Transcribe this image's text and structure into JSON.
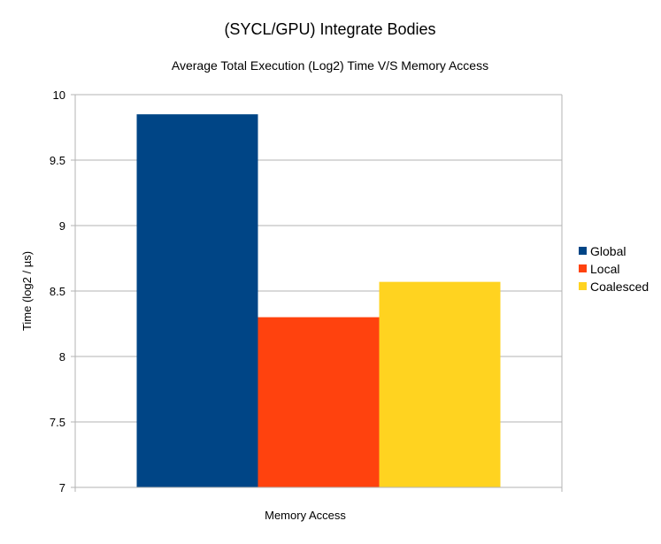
{
  "chart_data": {
    "type": "bar",
    "title": "(SYCL/GPU) Integrate Bodies",
    "subtitle": "Average Total Execution (Log2) Time V/S Memory Access",
    "xlabel": "Memory Access",
    "ylabel": "Time (log2 / µs)",
    "categories": [
      "Memory Access"
    ],
    "series": [
      {
        "name": "Global",
        "values": [
          9.85
        ],
        "color": "#004586"
      },
      {
        "name": "Local",
        "values": [
          8.3
        ],
        "color": "#ff420e"
      },
      {
        "name": "Coalesced",
        "values": [
          8.57
        ],
        "color": "#ffd320"
      }
    ],
    "ylim": [
      7,
      10
    ],
    "yticks": [
      "7",
      "7.5",
      "8",
      "8.5",
      "9",
      "9.5",
      "10"
    ],
    "grid": true,
    "legend_position": "right"
  }
}
